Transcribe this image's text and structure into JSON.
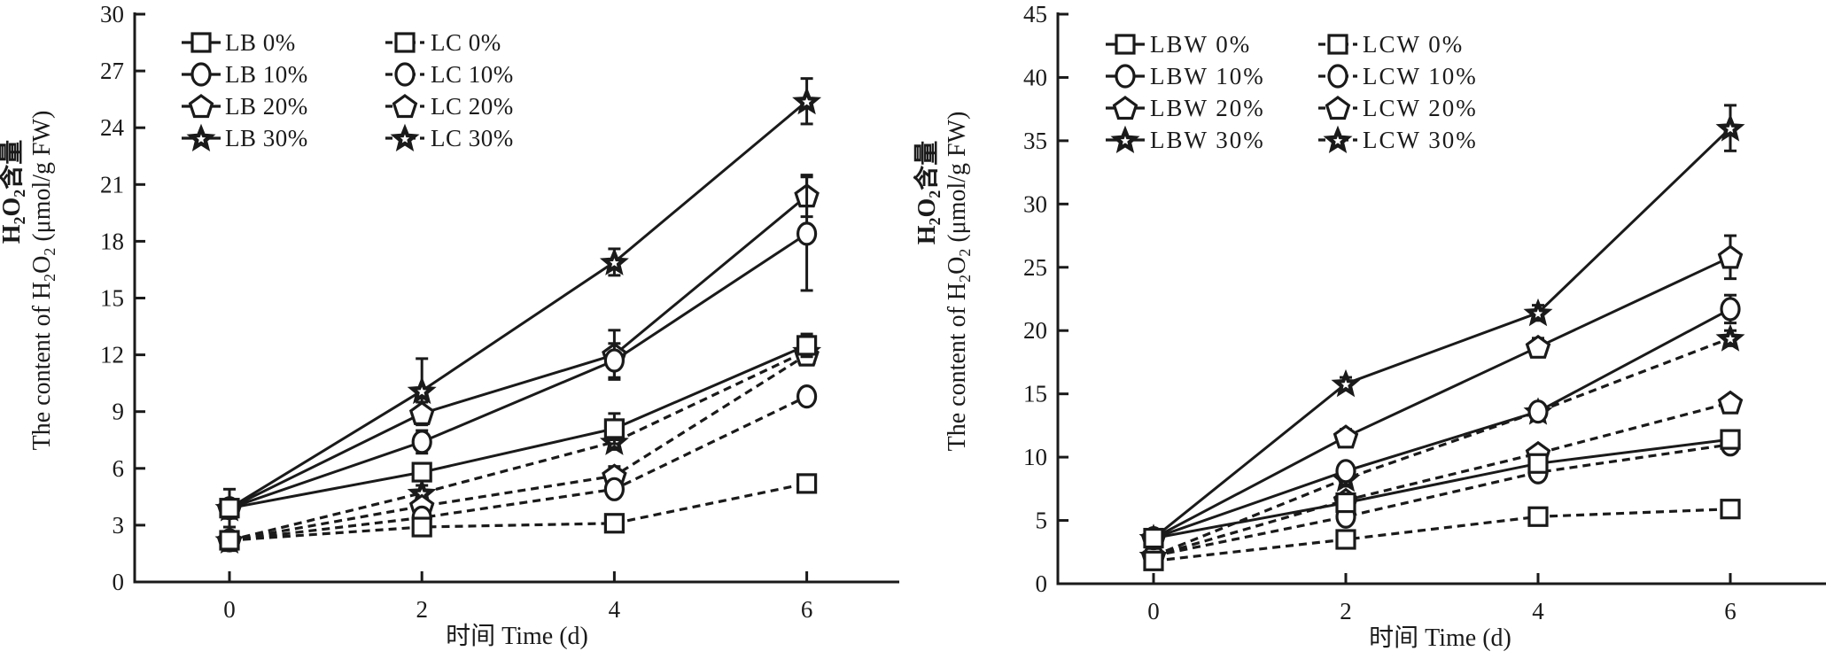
{
  "chart_data": [
    {
      "type": "line",
      "panel": "left",
      "title": "",
      "xlabel": "时间 Time (d)",
      "ylabel_line1": "H2O2含量",
      "ylabel_line2": "The content of H2O2 (μmol/g FW)",
      "ylabel_cn_prefix": "H",
      "ylabel_cn_suffix": "含量",
      "ylabel_en_prefix": "The content of H",
      "ylabel_en_suffix": " (μmol/g FW)",
      "sub2": "2",
      "letterO": "O",
      "x": [
        0,
        2,
        4,
        6
      ],
      "xticks": [
        "0",
        "2",
        "4",
        "6"
      ],
      "xlim": [
        -1,
        7
      ],
      "ylim": [
        0,
        30
      ],
      "yticks": [
        "0",
        "3",
        "6",
        "9",
        "12",
        "15",
        "18",
        "21",
        "24",
        "27",
        "30"
      ],
      "grid": false,
      "legend_position": "top-left",
      "series": [
        {
          "name": "LB 0%",
          "marker": "square",
          "line": "solid",
          "values": [
            3.9,
            5.8,
            8.1,
            12.5
          ],
          "errors": [
            1.0,
            0.4,
            0.8,
            0.6
          ]
        },
        {
          "name": "LB 10%",
          "marker": "circle",
          "line": "solid",
          "values": [
            3.9,
            7.4,
            11.7,
            18.4
          ],
          "errors": [
            0.3,
            0.6,
            0.9,
            3.0
          ]
        },
        {
          "name": "LB 20%",
          "marker": "pentagon",
          "line": "solid",
          "values": [
            3.9,
            8.9,
            12.0,
            20.4
          ],
          "errors": [
            0.3,
            0.6,
            1.3,
            1.1
          ]
        },
        {
          "name": "LB 30%",
          "marker": "star",
          "line": "solid",
          "values": [
            3.9,
            10.1,
            16.9,
            25.4
          ],
          "errors": [
            0.3,
            1.7,
            0.7,
            1.2
          ]
        },
        {
          "name": "LC 0%",
          "marker": "square",
          "line": "dashed",
          "values": [
            2.2,
            2.9,
            3.1,
            5.2
          ],
          "errors": [
            0.3,
            0.3,
            0.4,
            0.2
          ]
        },
        {
          "name": "LC 10%",
          "marker": "circle",
          "line": "dashed",
          "values": [
            2.2,
            3.4,
            4.9,
            9.8
          ],
          "errors": [
            0.3,
            0.4,
            0.4,
            0.4
          ]
        },
        {
          "name": "LC 20%",
          "marker": "pentagon",
          "line": "dashed",
          "values": [
            2.2,
            4.0,
            5.6,
            12.0
          ],
          "errors": [
            0.3,
            0.4,
            0.5,
            0.4
          ]
        },
        {
          "name": "LC 30%",
          "marker": "star",
          "line": "dashed",
          "values": [
            2.2,
            4.7,
            7.4,
            12.2
          ],
          "errors": [
            0.3,
            0.4,
            0.4,
            0.4
          ]
        }
      ]
    },
    {
      "type": "line",
      "panel": "right",
      "title": "",
      "xlabel": "时间 Time (d)",
      "ylabel_line1": "H2O2含量",
      "ylabel_line2": "The content of H2O2 (μmol/g FW)",
      "ylabel_cn_prefix": "H",
      "ylabel_cn_suffix": "含量",
      "ylabel_en_prefix": "The content of H",
      "ylabel_en_suffix": " (μmol/g FW)",
      "sub2": "2",
      "letterO": "O",
      "x": [
        0,
        2,
        4,
        6
      ],
      "xticks": [
        "0",
        "2",
        "4",
        "6"
      ],
      "xlim": [
        -1,
        7
      ],
      "ylim": [
        0,
        45
      ],
      "yticks": [
        "0",
        "5",
        "10",
        "15",
        "20",
        "25",
        "30",
        "35",
        "40",
        "45"
      ],
      "grid": false,
      "legend_position": "top-left",
      "series": [
        {
          "name": "LBW 0%",
          "marker": "square",
          "line": "solid",
          "values": [
            3.6,
            6.4,
            9.5,
            11.4
          ],
          "errors": [
            0.3,
            0.4,
            0.5,
            0.4
          ]
        },
        {
          "name": "LBW 10%",
          "marker": "circle",
          "line": "solid",
          "values": [
            3.6,
            8.9,
            13.6,
            21.7
          ],
          "errors": [
            0.3,
            0.5,
            0.5,
            1.1
          ]
        },
        {
          "name": "LBW 20%",
          "marker": "pentagon",
          "line": "solid",
          "values": [
            3.6,
            11.6,
            18.7,
            25.8
          ],
          "errors": [
            0.3,
            0.6,
            0.7,
            1.7
          ]
        },
        {
          "name": "LBW 30%",
          "marker": "star",
          "line": "solid",
          "values": [
            3.6,
            15.8,
            21.4,
            36.0
          ],
          "errors": [
            0.3,
            0.5,
            0.6,
            1.8
          ]
        },
        {
          "name": "LCW 0%",
          "marker": "square",
          "line": "dashed",
          "values": [
            1.8,
            3.5,
            5.3,
            5.9
          ],
          "errors": [
            0.3,
            0.4,
            0.3,
            0.3
          ]
        },
        {
          "name": "LCW 10%",
          "marker": "circle",
          "line": "dashed",
          "values": [
            2.2,
            5.3,
            8.8,
            11.0
          ],
          "errors": [
            0.3,
            0.5,
            0.6,
            0.5
          ]
        },
        {
          "name": "LCW 20%",
          "marker": "pentagon",
          "line": "dashed",
          "values": [
            2.2,
            6.6,
            10.3,
            14.3
          ],
          "errors": [
            0.3,
            0.5,
            0.5,
            0.4
          ]
        },
        {
          "name": "LCW 30%",
          "marker": "star",
          "line": "dashed",
          "values": [
            2.2,
            8.3,
            13.6,
            19.4
          ],
          "errors": [
            0.3,
            0.6,
            0.5,
            0.6
          ]
        }
      ]
    }
  ]
}
